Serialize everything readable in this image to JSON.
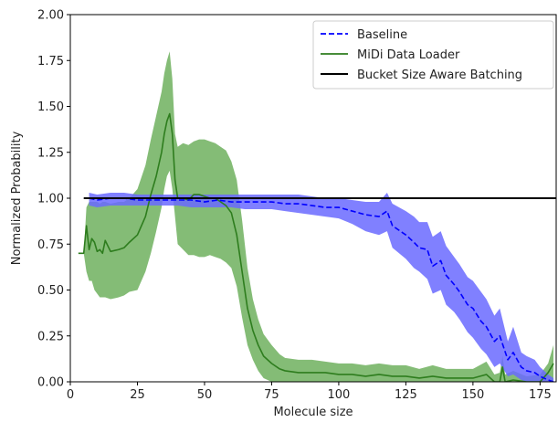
{
  "chart_data": {
    "type": "line",
    "xlabel": "Molecule size",
    "ylabel": "Normalized Probability",
    "xlim": [
      0,
      181
    ],
    "ylim": [
      0,
      2.0
    ],
    "xticks": [
      0,
      25,
      50,
      75,
      100,
      125,
      150,
      175
    ],
    "yticks": [
      0.0,
      0.25,
      0.5,
      0.75,
      1.0,
      1.25,
      1.5,
      1.75,
      2.0
    ],
    "xtick_labels": [
      "0",
      "25",
      "50",
      "75",
      "100",
      "125",
      "150",
      "175"
    ],
    "ytick_labels": [
      "0.00",
      "0.25",
      "0.50",
      "0.75",
      "1.00",
      "1.25",
      "1.50",
      "1.75",
      "2.00"
    ],
    "legend_position": "top-right",
    "grid": false,
    "series": [
      {
        "name": "Baseline",
        "color": "#0000ff",
        "line_style": "dashed",
        "x": [
          7,
          10,
          15,
          20,
          25,
          30,
          35,
          40,
          45,
          50,
          55,
          60,
          65,
          70,
          75,
          80,
          85,
          90,
          95,
          100,
          105,
          110,
          115,
          118,
          120,
          125,
          128,
          130,
          133,
          135,
          138,
          140,
          143,
          145,
          148,
          150,
          153,
          155,
          158,
          160,
          163,
          165,
          168,
          170,
          173,
          175,
          178,
          180
        ],
        "y": [
          1.0,
          0.99,
          1.0,
          1.0,
          0.99,
          0.99,
          0.99,
          0.99,
          0.99,
          0.98,
          0.99,
          0.98,
          0.98,
          0.98,
          0.98,
          0.97,
          0.97,
          0.96,
          0.95,
          0.95,
          0.93,
          0.91,
          0.9,
          0.93,
          0.85,
          0.8,
          0.76,
          0.73,
          0.72,
          0.63,
          0.66,
          0.58,
          0.53,
          0.49,
          0.42,
          0.4,
          0.33,
          0.3,
          0.22,
          0.25,
          0.12,
          0.16,
          0.08,
          0.06,
          0.05,
          0.03,
          0.01,
          0.0
        ],
        "lower": [
          0.96,
          0.95,
          0.96,
          0.96,
          0.96,
          0.96,
          0.96,
          0.96,
          0.95,
          0.95,
          0.95,
          0.95,
          0.94,
          0.94,
          0.94,
          0.93,
          0.92,
          0.91,
          0.9,
          0.89,
          0.86,
          0.82,
          0.8,
          0.82,
          0.73,
          0.67,
          0.62,
          0.6,
          0.56,
          0.48,
          0.5,
          0.42,
          0.38,
          0.34,
          0.27,
          0.24,
          0.18,
          0.15,
          0.08,
          0.1,
          0.03,
          0.04,
          0.01,
          0.0,
          0.0,
          0.0,
          0.0,
          0.0
        ],
        "upper": [
          1.03,
          1.02,
          1.03,
          1.03,
          1.02,
          1.02,
          1.02,
          1.02,
          1.02,
          1.02,
          1.02,
          1.02,
          1.02,
          1.02,
          1.02,
          1.02,
          1.02,
          1.01,
          1.0,
          1.0,
          0.99,
          0.98,
          0.98,
          1.03,
          0.97,
          0.93,
          0.9,
          0.87,
          0.87,
          0.79,
          0.82,
          0.74,
          0.68,
          0.64,
          0.57,
          0.55,
          0.49,
          0.45,
          0.36,
          0.4,
          0.22,
          0.3,
          0.16,
          0.14,
          0.12,
          0.08,
          0.04,
          0.02
        ]
      },
      {
        "name": "MiDi Data Loader",
        "color": "#2e7d1e",
        "line_style": "solid",
        "x": [
          3,
          5,
          6,
          7,
          8,
          9,
          10,
          11,
          12,
          13,
          15,
          18,
          20,
          22,
          25,
          28,
          30,
          32,
          34,
          35,
          36,
          37,
          38,
          39,
          40,
          42,
          44,
          46,
          48,
          50,
          52,
          54,
          56,
          58,
          60,
          62,
          64,
          66,
          68,
          70,
          72,
          75,
          78,
          80,
          85,
          90,
          95,
          100,
          105,
          110,
          115,
          120,
          125,
          130,
          135,
          140,
          145,
          150,
          155,
          158,
          160,
          161,
          162,
          165,
          170,
          175,
          178,
          180
        ],
        "y": [
          0.7,
          0.7,
          0.85,
          0.72,
          0.78,
          0.76,
          0.71,
          0.72,
          0.7,
          0.77,
          0.71,
          0.72,
          0.73,
          0.76,
          0.8,
          0.9,
          1.02,
          1.12,
          1.25,
          1.35,
          1.42,
          1.46,
          1.35,
          1.1,
          1.0,
          1.0,
          0.99,
          1.02,
          1.02,
          1.01,
          1.0,
          1.0,
          0.98,
          0.96,
          0.92,
          0.8,
          0.6,
          0.4,
          0.28,
          0.2,
          0.14,
          0.1,
          0.07,
          0.06,
          0.05,
          0.05,
          0.05,
          0.04,
          0.04,
          0.03,
          0.04,
          0.03,
          0.03,
          0.02,
          0.03,
          0.02,
          0.02,
          0.02,
          0.04,
          0.0,
          0.0,
          0.08,
          0.0,
          0.01,
          0.0,
          0.0,
          0.05,
          0.1
        ],
        "lower": [
          0.7,
          0.7,
          0.6,
          0.55,
          0.55,
          0.5,
          0.48,
          0.46,
          0.46,
          0.46,
          0.45,
          0.46,
          0.47,
          0.49,
          0.5,
          0.6,
          0.7,
          0.82,
          0.95,
          1.05,
          1.12,
          1.15,
          1.05,
          0.9,
          0.75,
          0.72,
          0.69,
          0.69,
          0.68,
          0.68,
          0.69,
          0.68,
          0.67,
          0.65,
          0.62,
          0.52,
          0.35,
          0.2,
          0.12,
          0.06,
          0.02,
          0.0,
          0.0,
          0.0,
          0.0,
          0.0,
          0.0,
          0.0,
          0.0,
          0.0,
          0.0,
          0.0,
          0.0,
          0.0,
          0.0,
          0.0,
          0.0,
          0.0,
          0.0,
          0.0,
          0.0,
          0.0,
          0.0,
          0.0,
          0.0,
          0.0,
          0.0,
          0.0
        ],
        "upper": [
          0.7,
          0.7,
          0.95,
          0.98,
          0.98,
          0.98,
          0.98,
          0.97,
          0.98,
          0.98,
          0.97,
          0.98,
          0.98,
          1.0,
          1.05,
          1.18,
          1.32,
          1.45,
          1.58,
          1.68,
          1.75,
          1.8,
          1.65,
          1.35,
          1.28,
          1.3,
          1.29,
          1.31,
          1.32,
          1.32,
          1.31,
          1.3,
          1.28,
          1.26,
          1.2,
          1.1,
          0.88,
          0.62,
          0.45,
          0.34,
          0.26,
          0.2,
          0.15,
          0.13,
          0.12,
          0.12,
          0.11,
          0.1,
          0.1,
          0.09,
          0.1,
          0.09,
          0.09,
          0.07,
          0.09,
          0.07,
          0.07,
          0.07,
          0.11,
          0.04,
          0.05,
          0.14,
          0.04,
          0.06,
          0.03,
          0.04,
          0.1,
          0.2
        ]
      },
      {
        "name": "Bucket Size Aware Batching",
        "color": "#000000",
        "line_style": "solid",
        "x": [
          5,
          181
        ],
        "y": [
          1.0,
          1.0
        ]
      }
    ]
  }
}
